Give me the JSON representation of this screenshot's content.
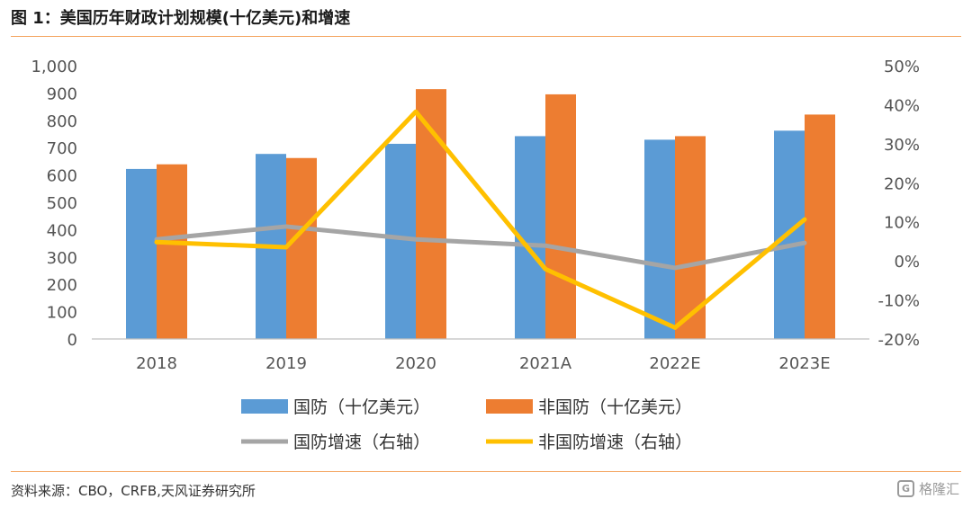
{
  "title": "图 1：美国历年财政计划规模(十亿美元)和增速",
  "source": "资料来源：CBO，CRFB,天风证券研究所",
  "watermark": "格隆汇",
  "chart_data": {
    "type": "bar",
    "categories": [
      "2018",
      "2019",
      "2020",
      "2021A",
      "2022E",
      "2023E"
    ],
    "series": [
      {
        "name": "国防（十亿美元）",
        "kind": "bar",
        "axis": "left",
        "color": "#5b9bd5",
        "values": [
          622,
          677,
          714,
          742,
          729,
          762
        ]
      },
      {
        "name": "非国防（十亿美元）",
        "kind": "bar",
        "axis": "left",
        "color": "#ed7d31",
        "values": [
          639,
          662,
          914,
          895,
          742,
          821
        ]
      },
      {
        "name": "国防增速（右轴）",
        "kind": "line",
        "axis": "right",
        "color": "#a5a5a5",
        "values": [
          5.5,
          8.8,
          5.5,
          3.9,
          -1.8,
          4.6
        ]
      },
      {
        "name": "非国防增速（右轴）",
        "kind": "line",
        "axis": "right",
        "color": "#ffc000",
        "values": [
          4.8,
          3.5,
          38.2,
          -2.1,
          -17.1,
          10.6
        ]
      }
    ],
    "y_left": {
      "min": 0,
      "max": 1000,
      "step": 100,
      "ticks": [
        "0",
        "100",
        "200",
        "300",
        "400",
        "500",
        "600",
        "700",
        "800",
        "900",
        "1,000"
      ]
    },
    "y_right": {
      "min": -20,
      "max": 50,
      "step": 10,
      "ticks": [
        "-20%",
        "-10%",
        "0%",
        "10%",
        "20%",
        "30%",
        "40%",
        "50%"
      ]
    },
    "grid": false,
    "legend": "bottom"
  }
}
